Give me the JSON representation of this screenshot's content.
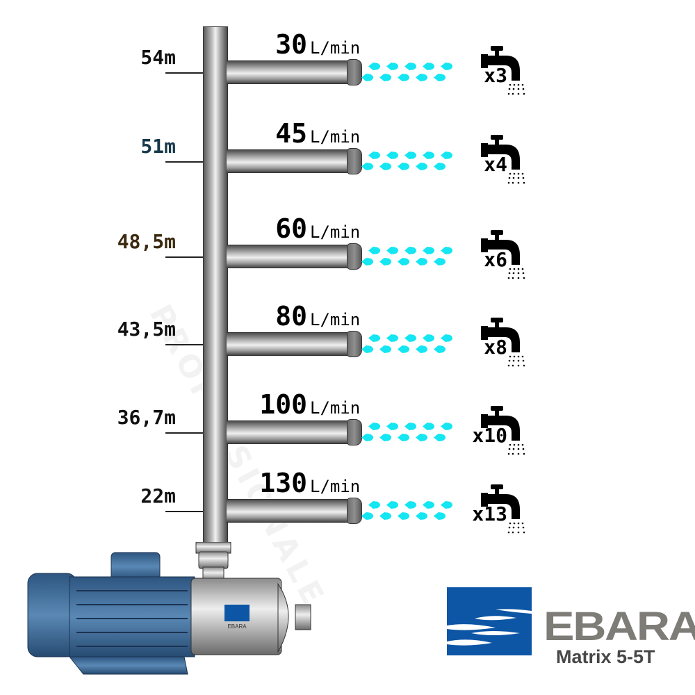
{
  "watermark": "PROFESSIONALE",
  "colors": {
    "water": "#14e6f2",
    "ebara_blue": "#0d55a5",
    "ebara_gray": "#7e7c77",
    "motor_blue": "#3f6f9e"
  },
  "outlets": [
    {
      "height": "54m",
      "height_color": "#111111",
      "flow": "30",
      "unit": "L/min",
      "taps": "x3"
    },
    {
      "height": "51m",
      "height_color": "#17384a",
      "flow": "45",
      "unit": "L/min",
      "taps": "x4"
    },
    {
      "height": "48,5m",
      "height_color": "#3b2a10",
      "flow": "60",
      "unit": "L/min",
      "taps": "x6"
    },
    {
      "height": "43,5m",
      "height_color": "#111111",
      "flow": "80",
      "unit": "L/min",
      "taps": "x8"
    },
    {
      "height": "36,7m",
      "height_color": "#111111",
      "flow": "100",
      "unit": "L/min",
      "taps": "x10"
    },
    {
      "height": "22m",
      "height_color": "#111111",
      "flow": "130",
      "unit": "L/min",
      "taps": "x13"
    }
  ],
  "icons": {
    "faucet": "faucet-icon",
    "water_drop": "water-drop-icon"
  },
  "pump": {
    "badge": "EBARA"
  },
  "brand": {
    "name": "EBARA",
    "model": "Matrix 5-5T"
  }
}
